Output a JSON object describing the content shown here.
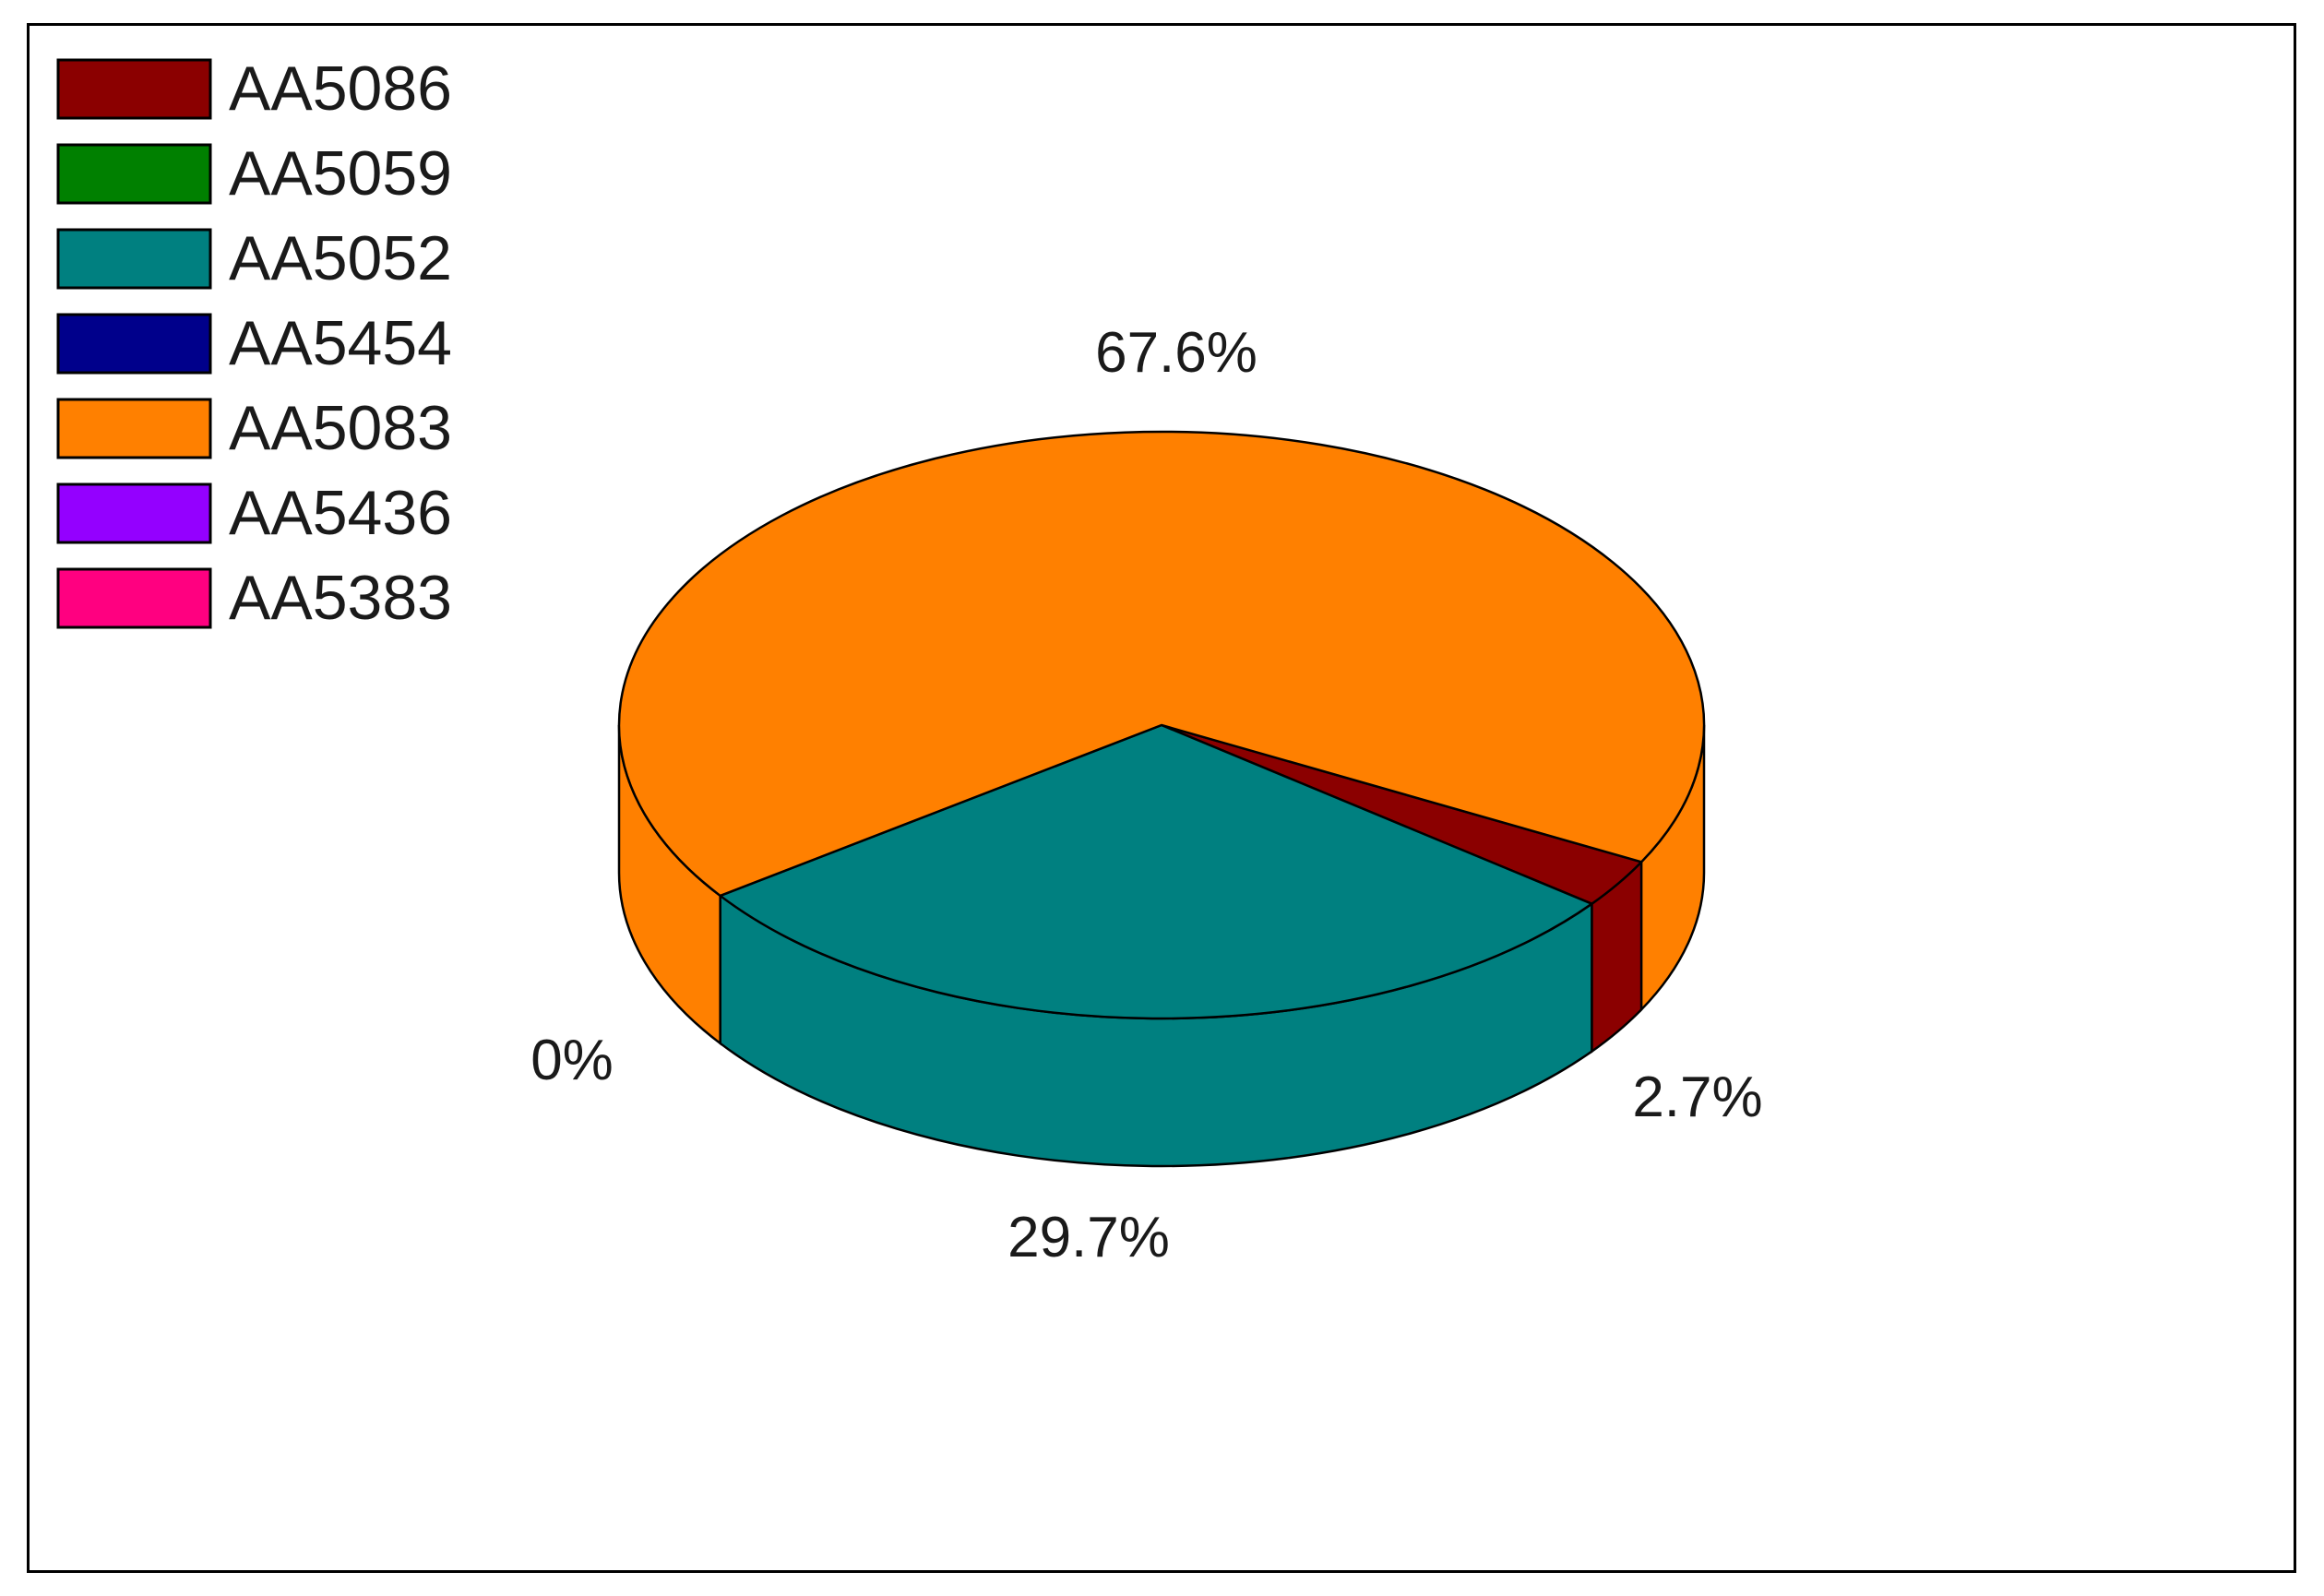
{
  "chart_data": {
    "type": "pie",
    "style": "3d",
    "legend_position": "top-left",
    "series": [
      {
        "name": "AA5086",
        "value": 2.7,
        "label": "2.7%",
        "color": "#8b0000"
      },
      {
        "name": "AA5059",
        "value": 0,
        "label": "",
        "color": "#008000"
      },
      {
        "name": "AA5052",
        "value": 29.7,
        "label": "29.7%",
        "color": "#008080"
      },
      {
        "name": "AA5454",
        "value": 0,
        "label": "",
        "color": "#00008b"
      },
      {
        "name": "AA5083",
        "value": 67.6,
        "label": "67.6%",
        "color": "#ff8000"
      },
      {
        "name": "AA5436",
        "value": 0,
        "label": "0%",
        "color": "#9400ff"
      },
      {
        "name": "AA5383",
        "value": 0,
        "label": "",
        "color": "#ff0080"
      }
    ]
  }
}
